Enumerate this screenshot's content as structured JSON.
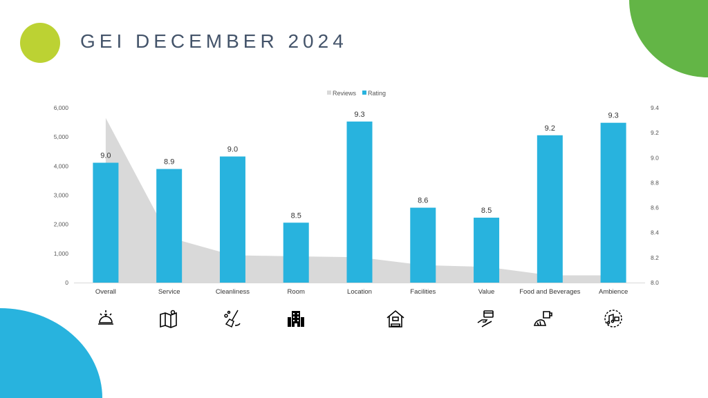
{
  "title": "GEI DECEMBER 2024",
  "colors": {
    "rating": "#28b3de",
    "reviews": "#d9d9d9",
    "lime": "#bcd233",
    "green": "#63b546"
  },
  "chart_data": {
    "type": "bar",
    "categories": [
      "Overall",
      "Service",
      "Cleanliness",
      "Room",
      "Location",
      "Facilities",
      "Value",
      "Food and Beverages",
      "Ambience"
    ],
    "series": [
      {
        "name": "Reviews",
        "type": "area",
        "axis": "left",
        "values": [
          5650,
          1550,
          940,
          900,
          870,
          600,
          540,
          250,
          250
        ]
      },
      {
        "name": "Rating",
        "type": "bar",
        "axis": "right",
        "values": [
          8.96,
          8.91,
          9.01,
          8.48,
          9.29,
          8.6,
          8.52,
          9.18,
          9.28
        ],
        "labels": [
          "9.0",
          "8.9",
          "9.0",
          "8.5",
          "9.3",
          "8.6",
          "8.5",
          "9.2",
          "9.3"
        ]
      }
    ],
    "legend": {
      "position": "top",
      "entries": [
        "Reviews",
        "Rating"
      ]
    },
    "ylim_left": [
      0,
      6000
    ],
    "yticks_left": [
      "0",
      "1,000",
      "2,000",
      "3,000",
      "4,000",
      "5,000",
      "6,000"
    ],
    "ylim_right": [
      8.0,
      9.4
    ],
    "yticks_right": [
      "8.0",
      "8.2",
      "8.4",
      "8.6",
      "8.8",
      "9.0",
      "9.2",
      "9.4"
    ],
    "grid": false
  },
  "icons": [
    "bell-icon",
    "map-icon",
    "cleaning-icon",
    "building-icon",
    "house-icon",
    "payment-hand-icon",
    "food-beverage-icon",
    "music-ambience-icon"
  ]
}
